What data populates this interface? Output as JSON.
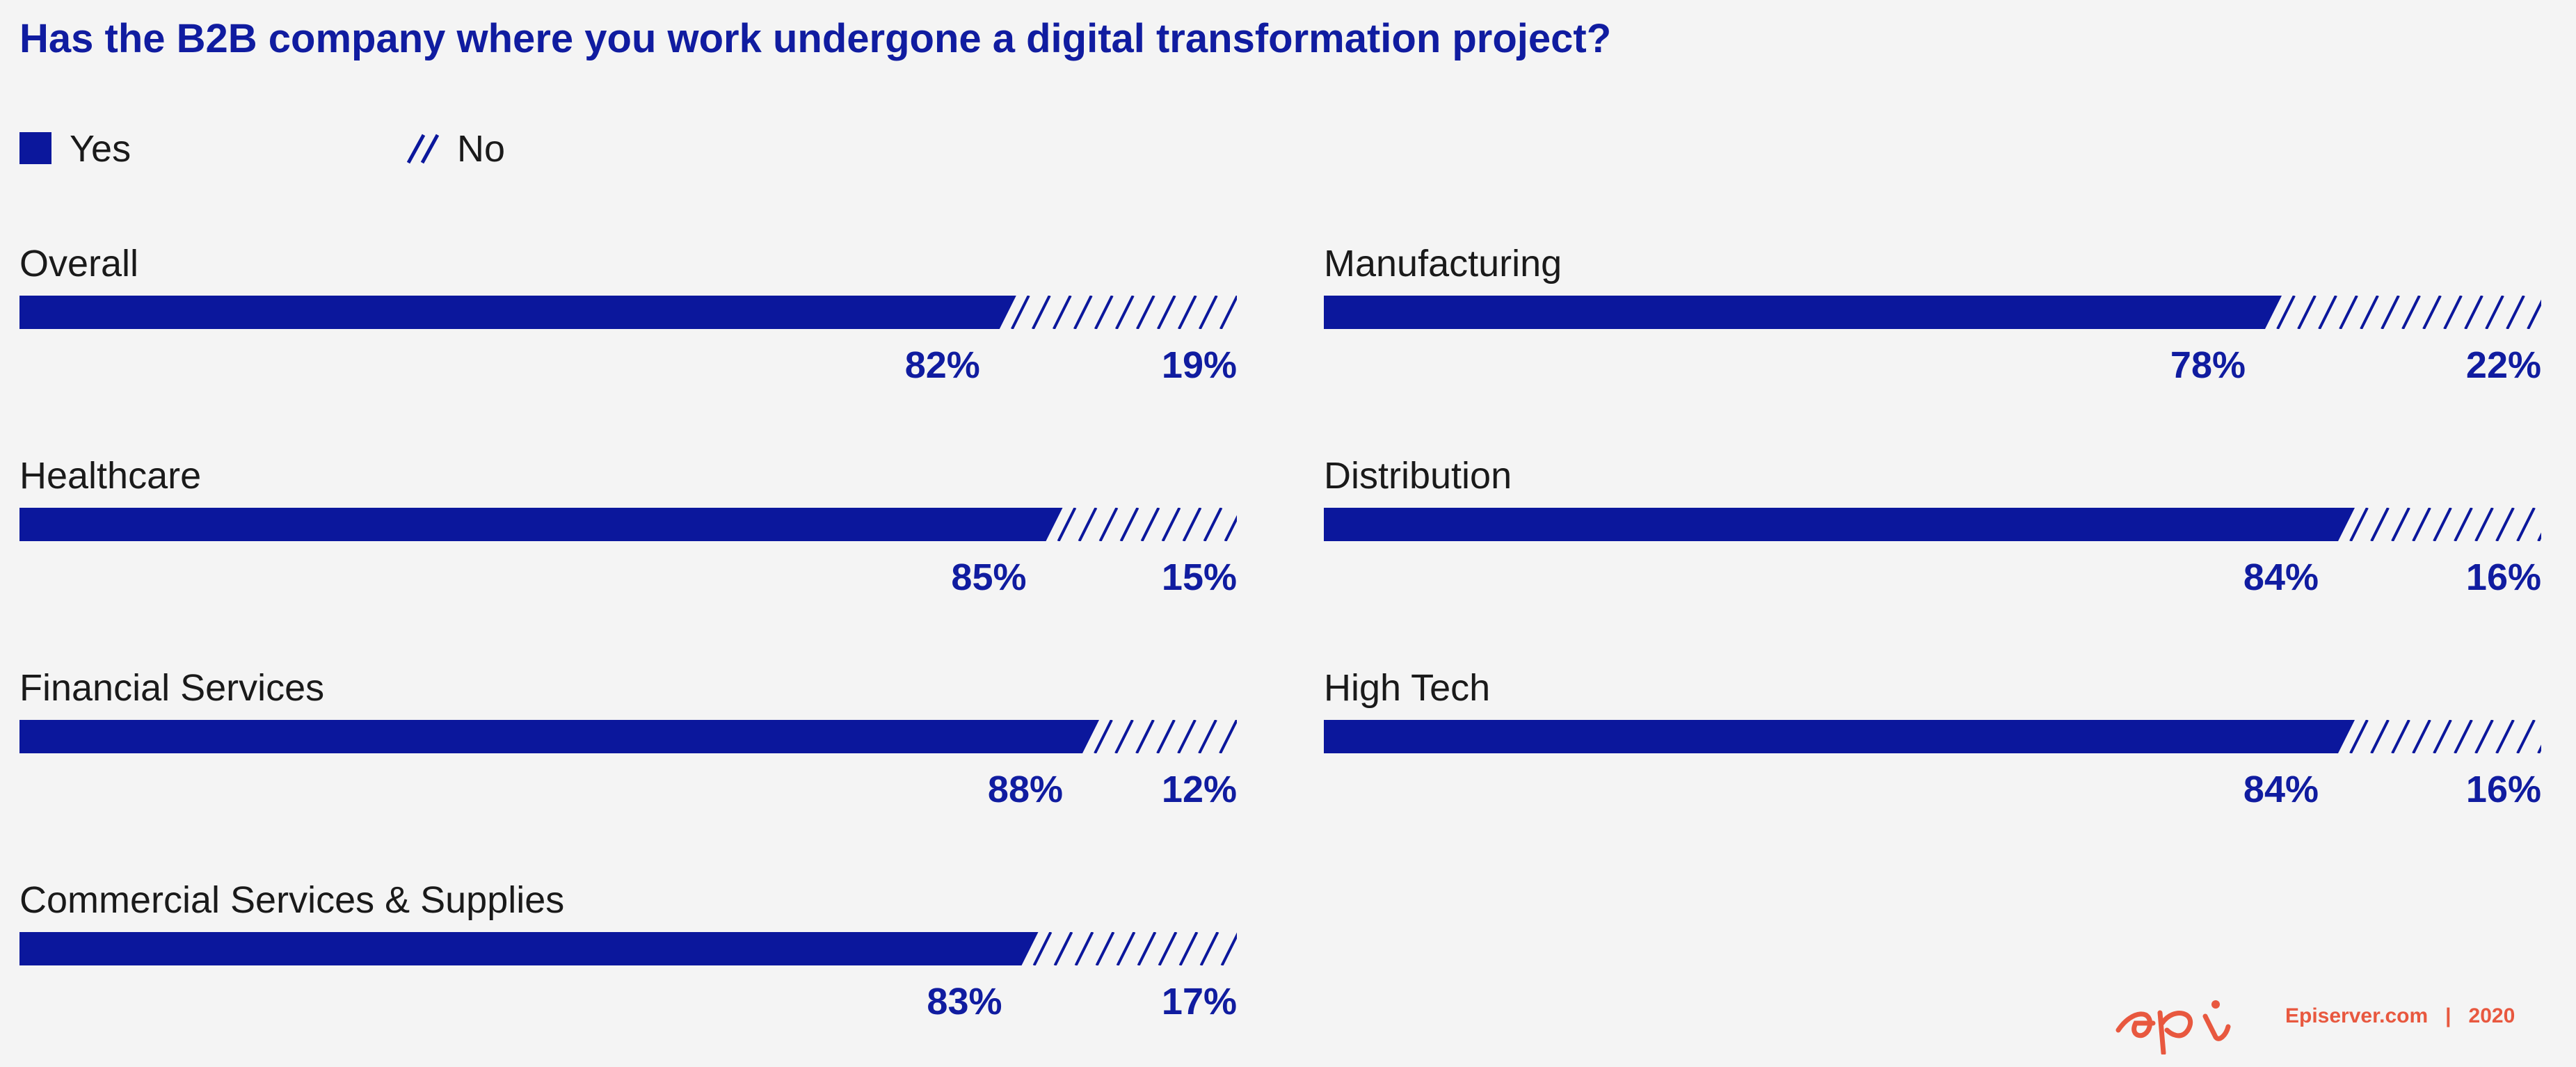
{
  "title": "Has the B2B company where you work undergone a digital transformation project?",
  "colors": {
    "yes": "#0b179c",
    "no_hatch": "#0b179c",
    "background": "#f4f4f4",
    "brand": "#e8583f"
  },
  "legend": [
    {
      "label": "Yes",
      "style": "solid"
    },
    {
      "label": "No",
      "style": "hatched"
    }
  ],
  "chart_data": {
    "type": "bar",
    "orientation": "horizontal",
    "stacked": true,
    "normalized": true,
    "title": "Has the B2B company where you work undergone a digital transformation project?",
    "legend_position": "top-left",
    "series": [
      {
        "name": "Yes",
        "values": [
          82,
          85,
          88,
          83,
          78,
          84,
          84
        ]
      },
      {
        "name": "No",
        "values": [
          19,
          15,
          12,
          17,
          22,
          16,
          16
        ]
      }
    ],
    "categories": [
      "Overall",
      "Healthcare",
      "Financial Services",
      "Commercial Services & Supplies",
      "Manufacturing",
      "Distribution",
      "High Tech"
    ],
    "value_labels": {
      "Yes": [
        "82%",
        "85%",
        "88%",
        "83%",
        "78%",
        "84%",
        "84%"
      ],
      "No": [
        "19%",
        "15%",
        "12%",
        "17%",
        "22%",
        "16%",
        "16%"
      ]
    },
    "layout_columns": [
      [
        "Overall",
        "Healthcare",
        "Financial Services",
        "Commercial Services & Supplies"
      ],
      [
        "Manufacturing",
        "Distribution",
        "High Tech"
      ]
    ]
  },
  "footer": {
    "logo_text": "epi",
    "site": "Episerver.com",
    "year": "2020"
  }
}
